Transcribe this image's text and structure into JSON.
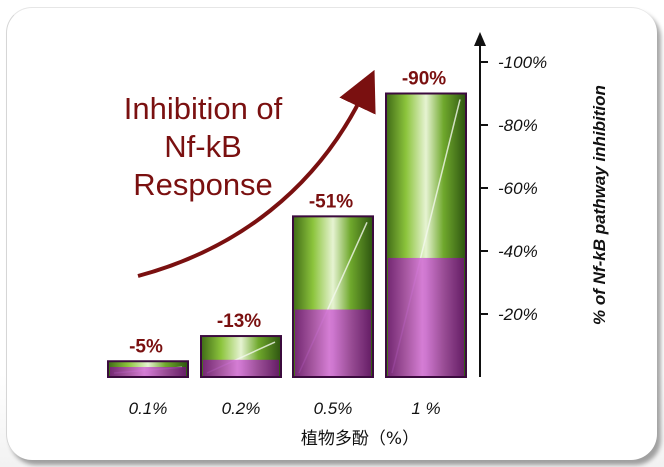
{
  "annotation_lines": [
    "Inhibition of",
    "Nf-kB",
    "Response"
  ],
  "colors": {
    "bar_fill": "#8a1f8e",
    "value_label": "#7a1010",
    "axis": "#111111",
    "frame_shadow": "#555555"
  },
  "chart_data": {
    "type": "bar",
    "categories": [
      "0.1%",
      "0.2%",
      "0.5%",
      "1 %"
    ],
    "values": [
      -5,
      -13,
      -51,
      -90
    ],
    "value_labels": [
      "-5%",
      "-13%",
      "-51%",
      "-90%"
    ],
    "xlabel": "植物多酚（%）",
    "ylabel": "% of Nf-kB pathway inhibition",
    "yticks": [
      "-20%",
      "-40%",
      "-60%",
      "-80%",
      "-100%"
    ],
    "ytick_values": [
      -20,
      -40,
      -60,
      -80,
      -100
    ],
    "ylim": [
      0,
      -100
    ],
    "y_axis_side": "right",
    "grid": false,
    "legend": "none"
  }
}
